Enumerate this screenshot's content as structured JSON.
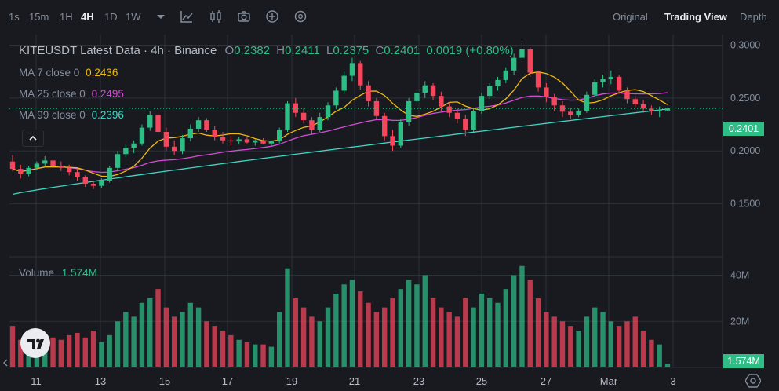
{
  "toolbar": {
    "intervals": [
      "1s",
      "15m",
      "1H",
      "4H",
      "1D",
      "1W"
    ],
    "active_interval": "4H",
    "views": [
      "Original",
      "Trading View",
      "Depth"
    ],
    "active_view": "Trading View"
  },
  "legend": {
    "title": "KITEUSDT Latest Data · 4h · Binance",
    "open_label": "O",
    "open": "0.2382",
    "high_label": "H",
    "high": "0.2411",
    "low_label": "L",
    "low": "0.2375",
    "close_label": "C",
    "close": "0.2401",
    "change": "0.0019 (+0.80%)",
    "ma7_label": "MA 7 close 0",
    "ma7_value": "0.2436",
    "ma25_label": "MA 25 close 0",
    "ma25_value": "0.2495",
    "ma99_label": "MA 99 close 0",
    "ma99_value": "0.2396"
  },
  "volume": {
    "label": "Volume",
    "value": "1.574M"
  },
  "price_axis": {
    "ticks": [
      "0.3000",
      "0.2500",
      "0.2000",
      "0.1500"
    ],
    "last_price": "0.2401"
  },
  "volume_axis": {
    "ticks": [
      "40M",
      "20M"
    ],
    "last_volume": "1.574M"
  },
  "time_axis": {
    "ticks": [
      "11",
      "13",
      "15",
      "17",
      "19",
      "21",
      "23",
      "25",
      "27",
      "Mar",
      "3"
    ]
  },
  "colors": {
    "up": "#2ebd85",
    "down": "#f6465d",
    "ma7": "#f0b90b",
    "ma25": "#d64bd6",
    "ma99": "#3fd7c3",
    "bg": "#181a20",
    "grid": "#2b3139"
  },
  "chart_data": {
    "type": "candlestick",
    "symbol": "KITEUSDT",
    "interval": "4h",
    "ylim": [
      0.1,
      0.31
    ],
    "volume_ylim": [
      0,
      48
    ],
    "candles": [
      [
        0.19,
        0.196,
        0.181,
        0.183,
        18
      ],
      [
        0.183,
        0.187,
        0.174,
        0.178,
        12
      ],
      [
        0.178,
        0.186,
        0.176,
        0.184,
        11
      ],
      [
        0.184,
        0.19,
        0.182,
        0.188,
        9
      ],
      [
        0.188,
        0.195,
        0.185,
        0.191,
        10
      ],
      [
        0.191,
        0.193,
        0.184,
        0.186,
        13
      ],
      [
        0.186,
        0.19,
        0.181,
        0.184,
        12
      ],
      [
        0.184,
        0.187,
        0.177,
        0.18,
        14
      ],
      [
        0.18,
        0.183,
        0.172,
        0.175,
        15
      ],
      [
        0.175,
        0.177,
        0.166,
        0.169,
        13
      ],
      [
        0.169,
        0.172,
        0.164,
        0.167,
        16
      ],
      [
        0.167,
        0.174,
        0.165,
        0.172,
        11
      ],
      [
        0.172,
        0.186,
        0.17,
        0.184,
        14
      ],
      [
        0.184,
        0.2,
        0.182,
        0.197,
        20
      ],
      [
        0.197,
        0.206,
        0.194,
        0.203,
        24
      ],
      [
        0.203,
        0.21,
        0.198,
        0.207,
        22
      ],
      [
        0.207,
        0.225,
        0.205,
        0.222,
        28
      ],
      [
        0.222,
        0.238,
        0.219,
        0.234,
        30
      ],
      [
        0.234,
        0.24,
        0.215,
        0.218,
        34
      ],
      [
        0.218,
        0.222,
        0.2,
        0.204,
        26
      ],
      [
        0.204,
        0.21,
        0.196,
        0.2,
        22
      ],
      [
        0.2,
        0.215,
        0.197,
        0.212,
        24
      ],
      [
        0.212,
        0.225,
        0.209,
        0.221,
        28
      ],
      [
        0.221,
        0.232,
        0.218,
        0.229,
        26
      ],
      [
        0.229,
        0.231,
        0.218,
        0.22,
        20
      ],
      [
        0.22,
        0.224,
        0.21,
        0.213,
        18
      ],
      [
        0.213,
        0.218,
        0.207,
        0.21,
        16
      ],
      [
        0.21,
        0.214,
        0.205,
        0.209,
        14
      ],
      [
        0.209,
        0.213,
        0.206,
        0.211,
        12
      ],
      [
        0.211,
        0.213,
        0.207,
        0.208,
        11
      ],
      [
        0.208,
        0.211,
        0.205,
        0.21,
        10
      ],
      [
        0.21,
        0.212,
        0.206,
        0.207,
        10
      ],
      [
        0.207,
        0.21,
        0.205,
        0.209,
        9
      ],
      [
        0.209,
        0.222,
        0.207,
        0.22,
        24
      ],
      [
        0.22,
        0.247,
        0.218,
        0.245,
        43
      ],
      [
        0.245,
        0.25,
        0.232,
        0.236,
        30
      ],
      [
        0.236,
        0.24,
        0.226,
        0.229,
        26
      ],
      [
        0.229,
        0.232,
        0.215,
        0.22,
        22
      ],
      [
        0.22,
        0.236,
        0.218,
        0.232,
        20
      ],
      [
        0.232,
        0.246,
        0.229,
        0.243,
        26
      ],
      [
        0.243,
        0.26,
        0.24,
        0.257,
        32
      ],
      [
        0.257,
        0.275,
        0.254,
        0.271,
        36
      ],
      [
        0.271,
        0.288,
        0.266,
        0.283,
        38
      ],
      [
        0.283,
        0.285,
        0.258,
        0.262,
        33
      ],
      [
        0.262,
        0.266,
        0.242,
        0.247,
        28
      ],
      [
        0.247,
        0.25,
        0.23,
        0.233,
        24
      ],
      [
        0.233,
        0.236,
        0.21,
        0.214,
        26
      ],
      [
        0.214,
        0.22,
        0.2,
        0.205,
        30
      ],
      [
        0.205,
        0.23,
        0.203,
        0.227,
        34
      ],
      [
        0.227,
        0.25,
        0.224,
        0.247,
        38
      ],
      [
        0.247,
        0.258,
        0.243,
        0.255,
        36
      ],
      [
        0.255,
        0.266,
        0.25,
        0.262,
        40
      ],
      [
        0.262,
        0.264,
        0.248,
        0.252,
        30
      ],
      [
        0.252,
        0.256,
        0.238,
        0.242,
        26
      ],
      [
        0.242,
        0.246,
        0.232,
        0.236,
        24
      ],
      [
        0.236,
        0.24,
        0.226,
        0.23,
        22
      ],
      [
        0.23,
        0.234,
        0.214,
        0.22,
        30
      ],
      [
        0.22,
        0.24,
        0.218,
        0.238,
        26
      ],
      [
        0.238,
        0.255,
        0.235,
        0.252,
        32
      ],
      [
        0.252,
        0.264,
        0.249,
        0.261,
        30
      ],
      [
        0.261,
        0.27,
        0.257,
        0.267,
        28
      ],
      [
        0.267,
        0.279,
        0.264,
        0.276,
        34
      ],
      [
        0.276,
        0.292,
        0.272,
        0.288,
        40
      ],
      [
        0.288,
        0.302,
        0.284,
        0.296,
        44
      ],
      [
        0.296,
        0.298,
        0.27,
        0.274,
        38
      ],
      [
        0.274,
        0.276,
        0.256,
        0.26,
        30
      ],
      [
        0.26,
        0.264,
        0.246,
        0.251,
        24
      ],
      [
        0.251,
        0.254,
        0.238,
        0.243,
        22
      ],
      [
        0.243,
        0.247,
        0.232,
        0.237,
        20
      ],
      [
        0.237,
        0.241,
        0.23,
        0.234,
        18
      ],
      [
        0.234,
        0.24,
        0.232,
        0.238,
        16
      ],
      [
        0.238,
        0.256,
        0.236,
        0.253,
        22
      ],
      [
        0.253,
        0.268,
        0.251,
        0.265,
        26
      ],
      [
        0.265,
        0.272,
        0.26,
        0.268,
        24
      ],
      [
        0.268,
        0.276,
        0.263,
        0.27,
        20
      ],
      [
        0.27,
        0.272,
        0.254,
        0.257,
        18
      ],
      [
        0.257,
        0.26,
        0.245,
        0.249,
        20
      ],
      [
        0.249,
        0.252,
        0.24,
        0.244,
        22
      ],
      [
        0.244,
        0.248,
        0.236,
        0.24,
        16
      ],
      [
        0.24,
        0.243,
        0.234,
        0.238,
        12
      ],
      [
        0.238,
        0.242,
        0.232,
        0.2382,
        10
      ],
      [
        0.2382,
        0.2411,
        0.2375,
        0.2401,
        1.574
      ]
    ]
  }
}
